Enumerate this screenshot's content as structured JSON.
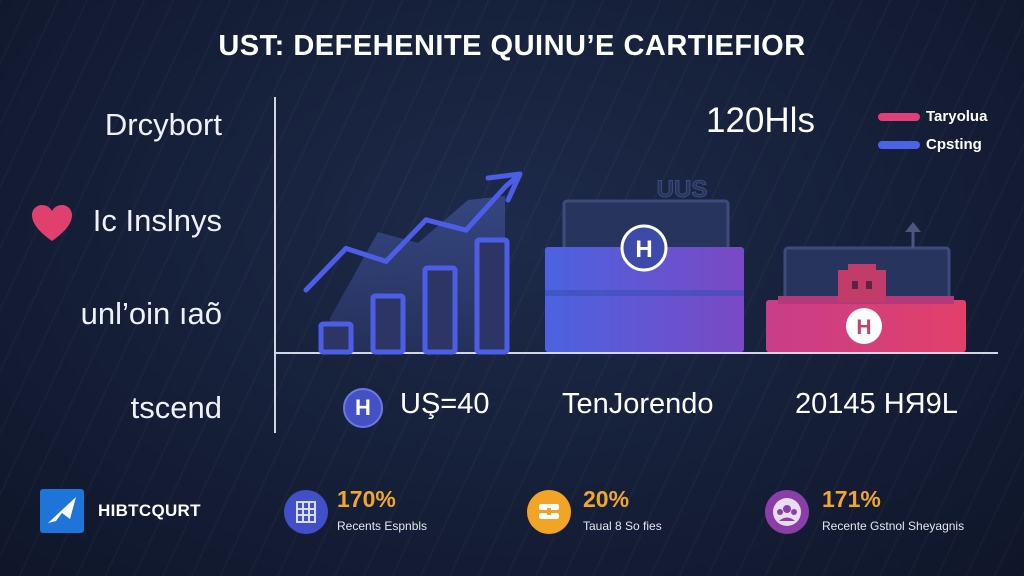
{
  "title": "UST: DEFEHENITE QUINU’E CARTIEFIOR",
  "rows": [
    {
      "label": "Drcybort"
    },
    {
      "label": "Ic Inslnys"
    },
    {
      "label": "unl’oin ıaõ"
    },
    {
      "label": "tscend"
    }
  ],
  "headline_value": "120Hls",
  "legend": [
    {
      "label": "Taryolua",
      "color": "#e0407a"
    },
    {
      "label": "Cpsting",
      "color": "#4d63e6"
    }
  ],
  "chart_data": {
    "type": "bar",
    "title": "UST: DEFEHENITE QUINU’E CARTIEFIOR",
    "groups": [
      {
        "name": "growth",
        "bars": [
          1,
          2,
          3,
          4
        ],
        "trend_line": [
          1.6,
          3.2,
          2.7,
          4.3,
          3.9,
          5.6
        ],
        "label": "UŞ=40"
      },
      {
        "name": "blue-platform",
        "series": "Cpsting",
        "value": 3.2,
        "caption": "UUS",
        "label": "TenJorendo"
      },
      {
        "name": "pink-platform",
        "series": "Taryolua",
        "value": 1.6,
        "label": "20145 ΗЯ9L"
      }
    ],
    "legend_position": "top-right"
  },
  "footer": {
    "brand": "HIBTCQURT",
    "stats": [
      {
        "value": "170%",
        "caption": "Recents Espnbls",
        "icon": "grid-icon",
        "color": "#4150c8"
      },
      {
        "value": "20%",
        "caption": "Taual 8 So fies",
        "icon": "stack-icon",
        "color": "#f2a525"
      },
      {
        "value": "171%",
        "caption": "Recente Gstnol Sheyagnis",
        "icon": "group-icon",
        "color": "#8c3ea8"
      }
    ]
  },
  "colors": {
    "accent_blue": "#4d63e6",
    "accent_pink": "#e0407a",
    "accent_orange": "#f3a62a"
  }
}
